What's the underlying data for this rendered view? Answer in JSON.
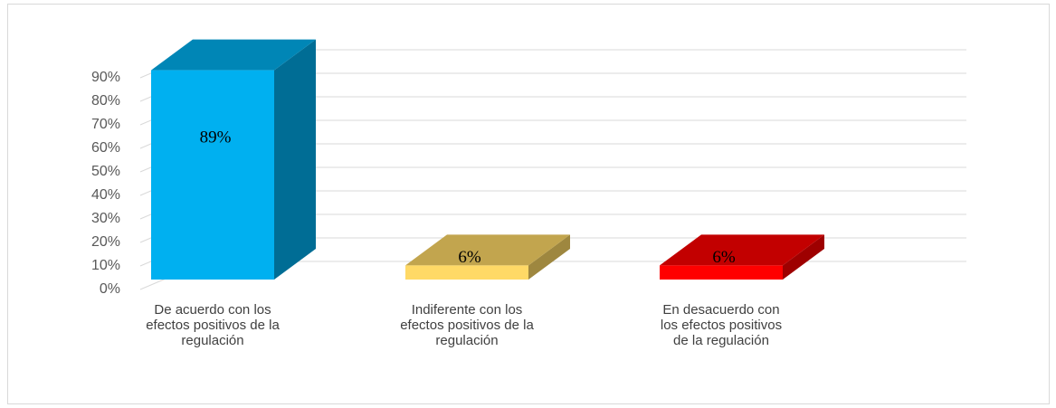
{
  "chart_data": {
    "type": "bar3d",
    "categories": [
      "De acuerdo con los efectos positivos de la regulación",
      "Indiferente con los efectos positivos de la regulación",
      "En desacuerdo con los efectos positivos de la regulación"
    ],
    "values": [
      89,
      6,
      6
    ],
    "value_labels": [
      "89%",
      "6%",
      "6%"
    ],
    "colors": [
      "#00b0f0",
      "#ffd966",
      "#ff0000"
    ],
    "ylim": [
      0,
      90
    ],
    "yticks": [
      {
        "value": 0,
        "label": "0%"
      },
      {
        "value": 10,
        "label": "10%"
      },
      {
        "value": 20,
        "label": "20%"
      },
      {
        "value": 30,
        "label": "30%"
      },
      {
        "value": 40,
        "label": "40%"
      },
      {
        "value": 50,
        "label": "50%"
      },
      {
        "value": 60,
        "label": "60%"
      },
      {
        "value": 70,
        "label": "70%"
      },
      {
        "value": 80,
        "label": "80%"
      },
      {
        "value": 90,
        "label": "90%"
      }
    ],
    "grid": true
  }
}
